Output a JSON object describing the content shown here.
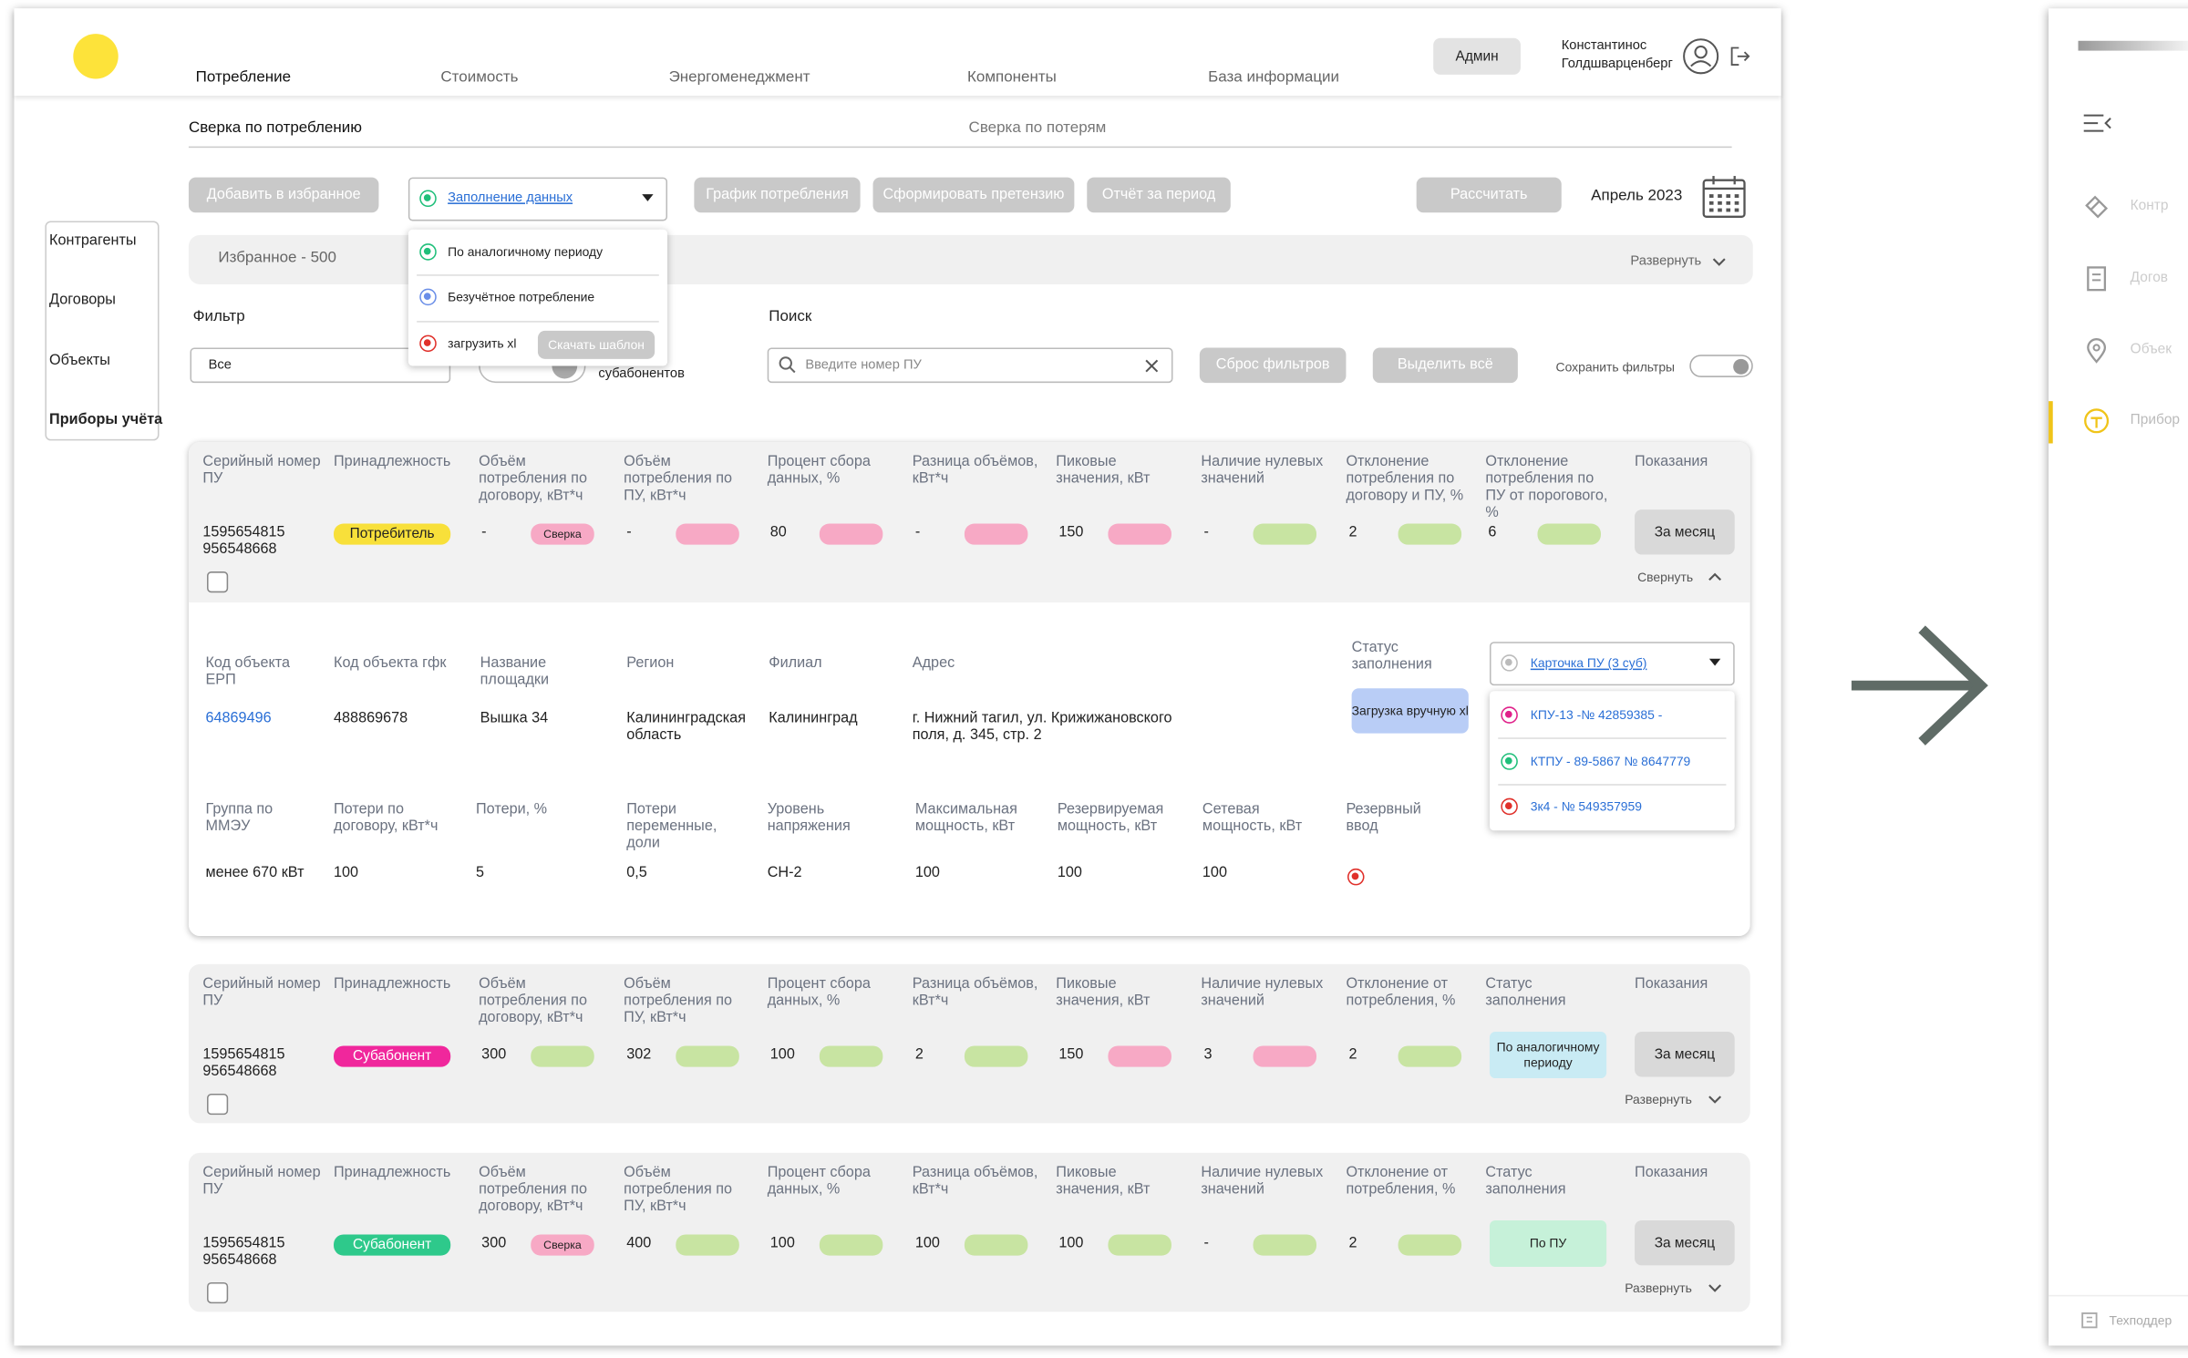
{
  "header": {
    "nav": [
      "Потребление",
      "Стоимость",
      "Энергоменеджмент",
      "Компоненты",
      "База информации"
    ],
    "admin": "Админ",
    "user": [
      "Константинос",
      "Голдшварценберг"
    ]
  },
  "tabs": [
    "Сверка по потреблению",
    "Сверка по потерям"
  ],
  "toolbar": {
    "favorite": "Добавить в избранное",
    "fill_select": "Заполнение данных",
    "actions": [
      "График потребления",
      "Сформировать претензию",
      "Отчёт за период"
    ],
    "calculate": "Рассчитать",
    "period": "Апрель 2023"
  },
  "fill_menu": {
    "options": [
      {
        "label": "По аналогичному периоду",
        "color": "#1fbf7a"
      },
      {
        "label": "Безучётное потребление",
        "color": "#6a8ee8"
      },
      {
        "label": "загрузить xl",
        "color": "#e0302a"
      }
    ],
    "template": "Скачать шаблон"
  },
  "sidebar": [
    "Контрагенты",
    "Договоры",
    "Объекты",
    "Приборы учёта"
  ],
  "favorites": {
    "label": "Избранное - 500",
    "expand": "Развернуть"
  },
  "filters": {
    "filter_label": "Фильтр",
    "filter_value": "Все",
    "toggle_label": "субабонентов",
    "search_label": "Поиск",
    "search_placeholder": "Введите номер ПУ",
    "reset": "Сброс фильтров",
    "select_all": "Выделить всё",
    "save": "Сохранить фильтры"
  },
  "cards": [
    {
      "expanded": true,
      "headers": [
        "Серийный номер ПУ",
        "Принадлежность",
        "Объём потребления по договору, кВт*ч",
        "Объём потребления по ПУ, кВт*ч",
        "Процент сбора данных, %",
        "Разница объёмов, кВт*ч",
        "Пиковые значения, кВт",
        "Наличие нулевых значений",
        "Отклонение потребления по договору и ПУ, %",
        "Отклонение потребления по ПУ от порогового, %",
        "Показания"
      ],
      "serial": "1595654815 956548668",
      "owner": {
        "label": "Потребитель",
        "color": "#f8e03a",
        "text_color": "#222222"
      },
      "cells": [
        {
          "text": "-",
          "pill": "#f7a9c5",
          "badge": "Сверка"
        },
        {
          "text": "-",
          "pill": "#f7a9c5"
        },
        {
          "text": "80",
          "pill": "#f7a9c5"
        },
        {
          "text": "-",
          "pill": "#f7a9c5"
        },
        {
          "text": "150",
          "pill": "#f7a9c5"
        },
        {
          "text": "-",
          "pill": "#c8e4a2"
        },
        {
          "text": "2",
          "pill": "#c8e4a2"
        },
        {
          "text": "6",
          "pill": "#c8e4a2"
        }
      ],
      "readings": "За месяц",
      "toggle": "Свернуть"
    },
    {
      "expanded": false,
      "headers": [
        "Серийный номер ПУ",
        "Принадлежность",
        "Объём потребления по договору, кВт*ч",
        "Объём потребления по ПУ, кВт*ч",
        "Процент сбора данных, %",
        "Разница объёмов, кВт*ч",
        "Пиковые значения, кВт",
        "Наличие нулевых значений",
        "Отклонение от потребления, %",
        "Статус заполнения",
        "Показания"
      ],
      "serial": "1595654815 956548668",
      "owner": {
        "label": "Субабонент",
        "color": "#f0279c",
        "text_color": "#ffffff"
      },
      "cells": [
        {
          "text": "300",
          "pill": "#c8e4a2"
        },
        {
          "text": "302",
          "pill": "#c8e4a2"
        },
        {
          "text": "100",
          "pill": "#c8e4a2"
        },
        {
          "text": "2",
          "pill": "#c8e4a2"
        },
        {
          "text": "150",
          "pill": "#f7a9c5"
        },
        {
          "text": "3",
          "pill": "#f7a9c5"
        },
        {
          "text": "2",
          "pill": "#c8e4a2"
        }
      ],
      "status": {
        "label": "По аналогичному периоду",
        "color": "#c9ebf4"
      },
      "readings": "За месяц",
      "toggle": "Развернуть"
    },
    {
      "expanded": false,
      "headers": [
        "Серийный номер ПУ",
        "Принадлежность",
        "Объём потребления по договору, кВт*ч",
        "Объём потребления по ПУ, кВт*ч",
        "Процент сбора данных, %",
        "Разница объёмов, кВт*ч",
        "Пиковые значения, кВт",
        "Наличие нулевых значений",
        "Отклонение от потребления, %",
        "Статус заполнения",
        "Показания"
      ],
      "serial": "1595654815 956548668",
      "owner": {
        "label": "Субабонент",
        "color": "#2ec98b",
        "text_color": "#ffffff"
      },
      "cells": [
        {
          "text": "300",
          "pill": "#f7a9c5",
          "badge": "Сверка"
        },
        {
          "text": "400",
          "pill": "#c8e4a2"
        },
        {
          "text": "100",
          "pill": "#c8e4a2"
        },
        {
          "text": "100",
          "pill": "#c8e4a2"
        },
        {
          "text": "100",
          "pill": "#c8e4a2"
        },
        {
          "text": "-",
          "pill": "#c8e4a2"
        },
        {
          "text": "2",
          "pill": "#c8e4a2"
        }
      ],
      "status": {
        "label": "По ПУ",
        "color": "#c6f1d9"
      },
      "readings": "За месяц",
      "toggle": "Развернуть"
    }
  ],
  "details": {
    "rows": [
      {
        "headers": [
          "Код объекта ЕРП",
          "Код объекта гфк",
          "Название площадки",
          "Регион",
          "Филиал",
          "Адрес"
        ],
        "values": [
          "64869496",
          "488869678",
          "Вышка 34",
          "Калининградская область",
          "Калининград",
          "г. Нижний тагил, ул. Крижижановского поля, д. 345, стр. 2"
        ]
      },
      {
        "headers": [
          "Группа по ММЭУ",
          "Потери по договору, кВт*ч",
          "Потери, %",
          "Потери переменные, доли",
          "Уровень напряжения",
          "Максимальная мощность, кВт",
          "Резервируемая мощность, кВт",
          "Сетевая мощность, кВт",
          "Резервный ввод"
        ],
        "values": [
          "менее 670 кВт",
          "100",
          "5",
          "0,5",
          "СН-2",
          "100",
          "100",
          "100"
        ]
      }
    ],
    "status_label": "Статус заполнения",
    "upload": "Загрузка вручную xl",
    "card_select": "Карточка ПУ (3 суб)",
    "card_options": [
      {
        "label": "КПУ-13  -№ 42859385  -",
        "color": "#e0218a"
      },
      {
        "label": "КТПУ - 89-5867 № 8647779",
        "color": "#1fbf7a"
      },
      {
        "label": "3к4 - № 549357959",
        "color": "#e0302a"
      }
    ]
  },
  "side_panel": {
    "items": [
      "Контр",
      "Догов",
      "Объек",
      "Прибор"
    ],
    "support": "Техподдер"
  }
}
